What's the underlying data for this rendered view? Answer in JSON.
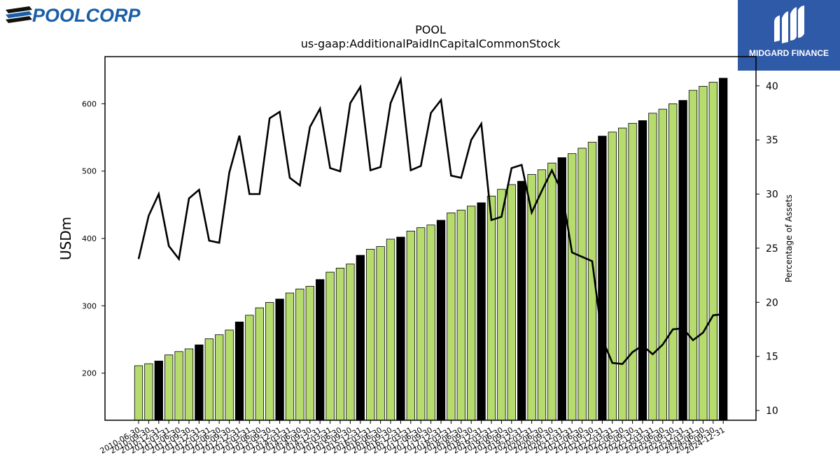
{
  "branding": {
    "left_logo_text": "POOLCORP",
    "right_logo_text": "MIDGARD FINANCE"
  },
  "chart_data": {
    "type": "bar",
    "title": "POOL",
    "subtitle": "us-gaap:AdditionalPaidInCapitalCommonStock",
    "ylabel": "USDm",
    "y2label": "Percentage of Assets",
    "ylim": [
      130,
      670
    ],
    "y2lim": [
      9.1,
      42.7
    ],
    "yticks": [
      200,
      300,
      400,
      500,
      600
    ],
    "y2ticks": [
      10,
      15,
      20,
      25,
      30,
      35,
      40
    ],
    "bar_fill": "#b5dc6c",
    "bar_highlight_fill": "#000000",
    "line_color": "#000000",
    "categories": [
      "2010-06-30",
      "2010-09-30",
      "2010-12-31",
      "2011-03-31",
      "2011-06-30",
      "2011-09-30",
      "2011-12-31",
      "2012-03-31",
      "2012-06-30",
      "2012-09-30",
      "2012-12-31",
      "2013-03-31",
      "2013-06-30",
      "2013-09-30",
      "2013-12-31",
      "2014-03-31",
      "2014-06-30",
      "2014-09-30",
      "2014-12-31",
      "2015-03-31",
      "2015-06-30",
      "2015-09-30",
      "2015-12-31",
      "2016-03-31",
      "2016-06-30",
      "2016-09-30",
      "2016-12-31",
      "2017-03-31",
      "2017-06-30",
      "2017-09-30",
      "2017-12-31",
      "2018-03-31",
      "2018-06-30",
      "2018-09-30",
      "2018-12-31",
      "2019-03-31",
      "2019-06-30",
      "2019-09-30",
      "2019-12-31",
      "2020-03-31",
      "2020-06-30",
      "2020-09-30",
      "2020-12-31",
      "2021-03-31",
      "2021-06-30",
      "2021-09-30",
      "2021-12-31",
      "2022-03-31",
      "2022-06-30",
      "2022-09-30",
      "2022-12-31",
      "2023-03-31",
      "2023-06-30",
      "2023-09-30",
      "2023-12-31",
      "2024-03-31",
      "2024-06-30",
      "2024-09-30",
      "2024-12-31"
    ],
    "x_tick_labels": [
      "2010-06-30",
      "2010-09-30",
      "2010-12-31",
      "2011-03-31",
      "2011-06-30",
      "2011-09-30",
      "2011-12-31",
      "2012-03-31",
      "2012-06-30",
      "2012-09-30",
      "2012-12-31",
      "2013-03-31",
      "2013-06-30",
      "2013-09-30",
      "2013-12-31",
      "2014-03-31",
      "2014-06-30",
      "2014-09-30",
      "2014-12-31",
      "2015-03-31",
      "2015-06-30",
      "2015-09-30",
      "2015-12-31",
      "2016-03-31",
      "2016-06-30",
      "2016-09-30",
      "2016-12-31",
      "2017-03-31",
      "2017-06-30",
      "2017-09-30",
      "2017-12-31",
      "2018-03-31",
      "2018-06-30",
      "2018-09-30",
      "2018-12-31",
      "2019-03-31",
      "2019-06-30",
      "2019-09-30",
      "2019-12-31",
      "2020-03-31",
      "2020-06-30",
      "2020-09-30",
      "2020-12-31",
      "2021-03-31",
      "2021-06-30",
      "2021-09-30",
      "2021-12-31",
      "2022-03-31",
      "2022-06-30",
      "2022-09-30",
      "2022-12-31",
      "2023-03-31",
      "2023-06-30",
      "2023-09-30",
      "2023-12-31",
      "2024-03-31",
      "2024-06-30",
      "2024-09-30",
      "2024-12-31"
    ],
    "highlight_categories": [
      "2010-12-31",
      "2011-12-31",
      "2012-12-31",
      "2013-12-31",
      "2014-12-31",
      "2015-12-31",
      "2016-12-31",
      "2017-12-31",
      "2018-12-31",
      "2019-12-31",
      "2020-12-31",
      "2021-12-31",
      "2022-12-31",
      "2023-12-31",
      "2024-12-31"
    ],
    "series": [
      {
        "values": [
          211,
          214,
          218,
          227,
          232,
          236,
          242,
          251,
          257,
          264,
          276,
          286,
          297,
          305,
          310,
          319,
          325,
          329,
          339,
          350,
          356,
          362,
          375,
          384,
          388,
          399,
          402,
          411,
          416,
          420,
          427,
          438,
          442,
          448,
          453,
          463,
          473,
          480,
          485,
          495,
          502,
          512,
          520,
          526,
          534,
          543,
          552,
          558,
          564,
          571,
          575,
          586,
          592,
          600,
          605,
          620,
          626,
          632,
          638
        ],
        "axis": "left",
        "kind": "bar"
      },
      {
        "values": [
          24.0,
          28.0,
          30.0,
          25.2,
          24.0,
          29.6,
          30.4,
          25.7,
          25.5,
          32.0,
          35.4,
          30.0,
          30.0,
          37.0,
          37.6,
          31.5,
          30.8,
          36.2,
          37.9,
          32.4,
          32.1,
          38.4,
          39.9,
          32.2,
          32.5,
          38.4,
          40.6,
          32.2,
          32.6,
          37.5,
          38.7,
          31.7,
          31.5,
          35.0,
          36.5,
          27.6,
          27.9,
          32.4,
          32.7,
          28.3,
          30.3,
          32.2,
          30.2,
          24.6,
          24.2,
          23.8,
          16.6,
          14.4,
          14.3,
          15.4,
          16.0,
          15.2,
          16.1,
          17.5,
          17.6,
          16.5,
          17.2,
          18.8,
          18.9
        ],
        "axis": "right",
        "kind": "line"
      }
    ]
  }
}
